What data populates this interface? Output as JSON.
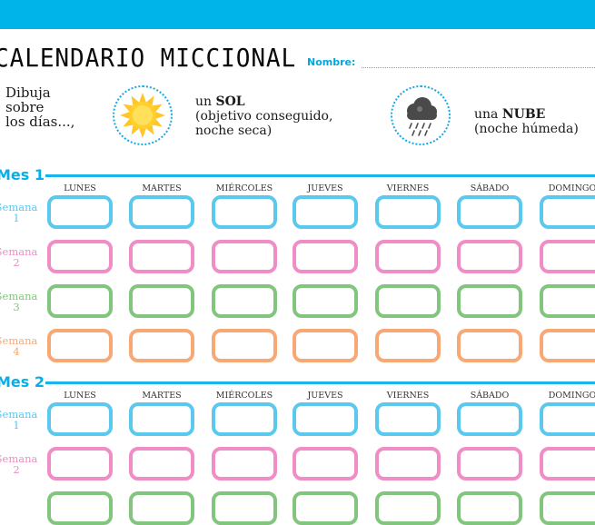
{
  "header": {
    "title": "CALENDARIO MICCIONAL",
    "nombre_label": "Nombre:"
  },
  "intro": {
    "lines": [
      "Dibuja",
      "sobre",
      "los días...,"
    ]
  },
  "legend": {
    "sun": {
      "prefix": "un ",
      "bold": "SOL",
      "desc1": "(objetivo conseguido,",
      "desc2": "noche seca)"
    },
    "cloud": {
      "prefix": "una ",
      "bold": "NUBE",
      "desc": "(noche húmeda)"
    }
  },
  "days": [
    "LUNES",
    "MARTES",
    "MIÉRCOLES",
    "JUEVES",
    "VIERNES",
    "SÁBADO",
    "DOMINGO"
  ],
  "months": [
    {
      "label": "Mes 1",
      "weeks": [
        {
          "word": "Semana",
          "num": "1",
          "color": "#5bc8ee"
        },
        {
          "word": "Semana",
          "num": "2",
          "color": "#f08cc6"
        },
        {
          "word": "Semana",
          "num": "3",
          "color": "#82c57d"
        },
        {
          "word": "Semana",
          "num": "4",
          "color": "#f7a874"
        }
      ]
    },
    {
      "label": "Mes 2",
      "weeks": [
        {
          "word": "Semana",
          "num": "1",
          "color": "#5bc8ee"
        },
        {
          "word": "Semana",
          "num": "2",
          "color": "#f08cc6"
        },
        {
          "word": "",
          "num": "",
          "color": "#82c57d"
        }
      ]
    }
  ],
  "colors": {
    "accent": "#00b4ea",
    "week1": "#5bc8ee",
    "week2": "#f08cc6",
    "week3": "#82c57d",
    "week4": "#f7a874"
  },
  "icons": {
    "sun": "sun-icon",
    "cloud": "rain-cloud-icon"
  }
}
